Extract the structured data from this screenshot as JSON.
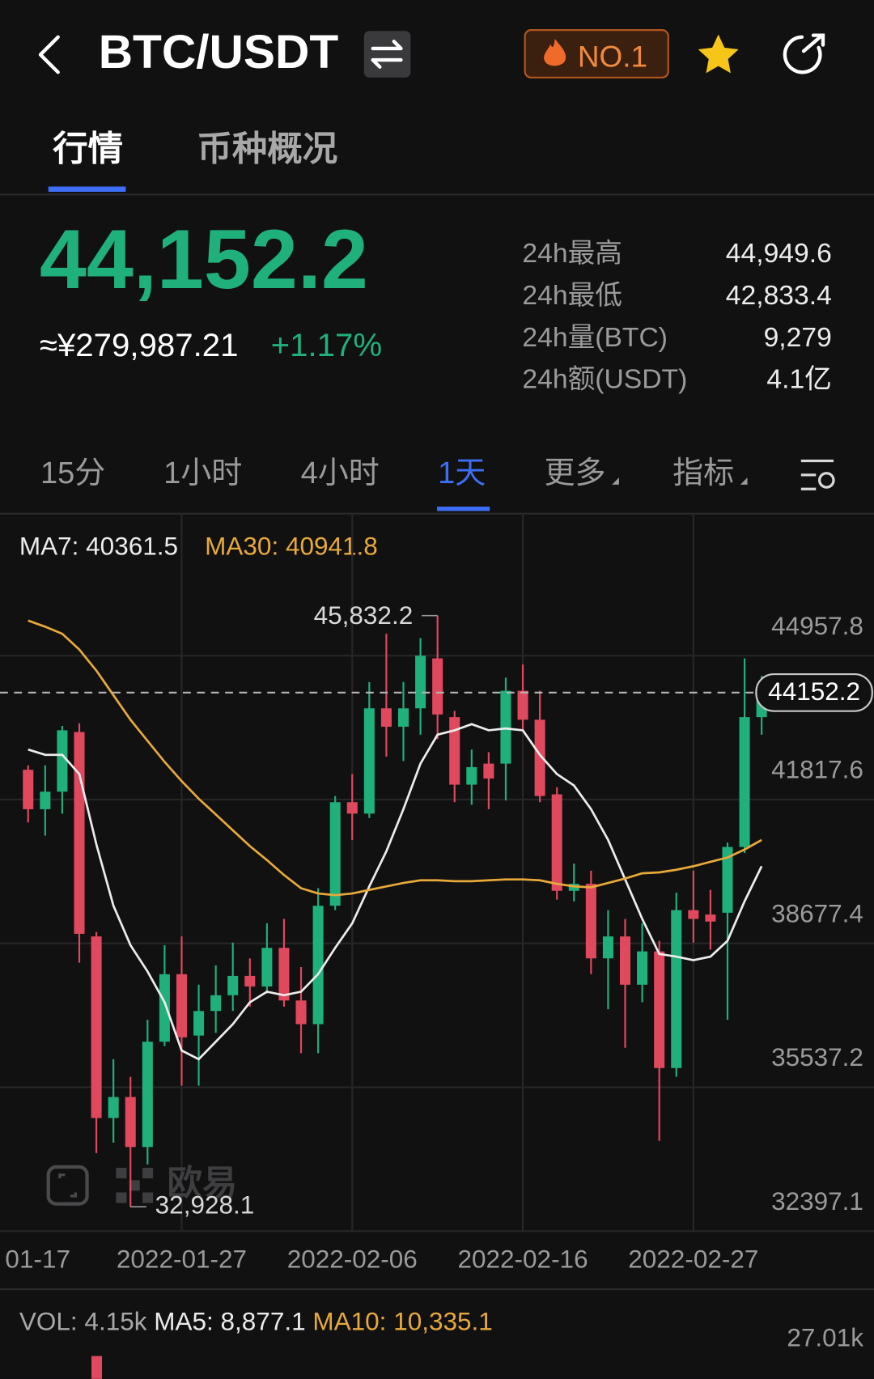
{
  "header": {
    "symbol": "BTC/USDT",
    "badge": "NO.1"
  },
  "tabs": [
    "行情",
    "币种概况"
  ],
  "ticker": {
    "price": "44,152.2",
    "cny": "≈¥279,987.21",
    "change": "+1.17%",
    "stats": [
      {
        "label": "24h最高",
        "value": "44,949.6"
      },
      {
        "label": "24h最低",
        "value": "42,833.4"
      },
      {
        "label": "24h量(BTC)",
        "value": "9,279"
      },
      {
        "label": "24h额(USDT)",
        "value": "4.1亿"
      }
    ]
  },
  "timeframes": [
    "15分",
    "1小时",
    "4小时",
    "1天",
    "更多",
    "指标"
  ],
  "chart_data": {
    "type": "candlestick",
    "legend": [
      "MA7: 40361.5",
      "MA30: 40941.8"
    ],
    "categories": [
      "01-17",
      null,
      null,
      null,
      null,
      null,
      null,
      null,
      null,
      "2022-01-27",
      null,
      null,
      null,
      null,
      null,
      null,
      null,
      null,
      null,
      "2022-02-06",
      null,
      null,
      null,
      null,
      null,
      null,
      null,
      null,
      null,
      "2022-02-16",
      null,
      null,
      null,
      null,
      null,
      null,
      null,
      null,
      null,
      "2022-02-27",
      null,
      null,
      null,
      null
    ],
    "open": [
      42468,
      41607,
      41990,
      43292,
      38830,
      34866,
      35325,
      34234,
      36532,
      38006,
      36666,
      37202,
      37547,
      37968,
      37738,
      38581,
      37432,
      36915,
      39500,
      41760,
      41511,
      43809,
      43407,
      43809,
      44900,
      43617,
      42143,
      42602,
      42602,
      44192,
      43560,
      41932,
      39826,
      39979,
      38351,
      38830,
      37776,
      38504,
      35957,
      39404,
      39308,
      39347,
      40783,
      43617
    ],
    "high": [
      42564,
      42564,
      43426,
      43483,
      38926,
      36149,
      35766,
      37011,
      38638,
      38830,
      37776,
      38198,
      38696,
      38351,
      39117,
      39213,
      38160,
      39883,
      41894,
      42373,
      44383,
      45437,
      44383,
      45341,
      45832.2,
      43751,
      42909,
      42851,
      44479,
      44766,
      44192,
      42085,
      40419,
      40266,
      39404,
      39213,
      39117,
      38734,
      39787,
      40266,
      39845,
      40879,
      44900,
      44517
    ],
    "low": [
      41319,
      41032,
      41511,
      38255,
      34100,
      34330,
      32928.1,
      33851,
      36436,
      35574,
      35574,
      36723,
      37202,
      37298,
      37585,
      37298,
      36283,
      36283,
      39404,
      40936,
      41415,
      42756,
      42660,
      43234,
      43138,
      41760,
      41703,
      41607,
      41798,
      43330,
      41760,
      39634,
      39596,
      38006,
      37240,
      36398,
      37394,
      34368,
      35766,
      38696,
      38543,
      37011,
      40649,
      43234
    ],
    "close": [
      41607,
      41990,
      43330,
      38887,
      34866,
      35325,
      34234,
      36532,
      38006,
      36627,
      37202,
      37547,
      37968,
      37738,
      38581,
      37432,
      36915,
      39500,
      41760,
      41511,
      43809,
      43407,
      43809,
      44958,
      43675,
      42143,
      42526,
      42277,
      44192,
      43560,
      41894,
      39826,
      39979,
      38351,
      38830,
      37776,
      38504,
      35957,
      39404,
      39213,
      39155,
      40783,
      43617,
      44152.2
    ],
    "up_color": "#20b07b",
    "down_color": "#e0485d",
    "lines": [
      {
        "color": "#ececec",
        "values": [
          42909,
          42794,
          42794,
          42373,
          40841,
          39500,
          38638,
          38064,
          37394,
          36340,
          36149,
          36532,
          36915,
          37394,
          37624,
          37547,
          37624,
          38007,
          38581,
          39117,
          39922,
          40688,
          41607,
          42603,
          43234,
          43330,
          43464,
          43330,
          43369,
          43330,
          42794,
          42373,
          42124,
          41607,
          40936,
          40075,
          39213,
          38447,
          38390,
          38313,
          38390,
          38734,
          39596,
          40362
        ]
      },
      {
        "color": "#e8a93a",
        "values": [
          45724,
          45590,
          45437,
          45092,
          44632,
          44096,
          43560,
          43100,
          42641,
          42220,
          41837,
          41492,
          41147,
          40802,
          40496,
          40170,
          39883,
          39768,
          39730,
          39768,
          39845,
          39922,
          39998,
          40056,
          40056,
          40036,
          40036,
          40056,
          40075,
          40075,
          40056,
          39979,
          39922,
          39902,
          39998,
          40094,
          40209,
          40228,
          40285,
          40362,
          40458,
          40553,
          40726,
          40936
        ]
      }
    ],
    "ylim": [
      32397.1,
      46600
    ],
    "yticks": [
      32397.1,
      35537.2,
      38677.4,
      41817.6,
      44957.8
    ],
    "grid": true,
    "last_price": 44152.2,
    "max_label": {
      "value": 45832.2,
      "label": "45,832.2"
    },
    "min_label": {
      "value": 32928.1,
      "label": "32,928.1"
    },
    "watermark": "欧易"
  },
  "volume": {
    "legend": [
      "VOL: 4.15k",
      "MA5: 8,877.1",
      "MA10: 10,335.1"
    ],
    "axis_label": "27.01k"
  }
}
